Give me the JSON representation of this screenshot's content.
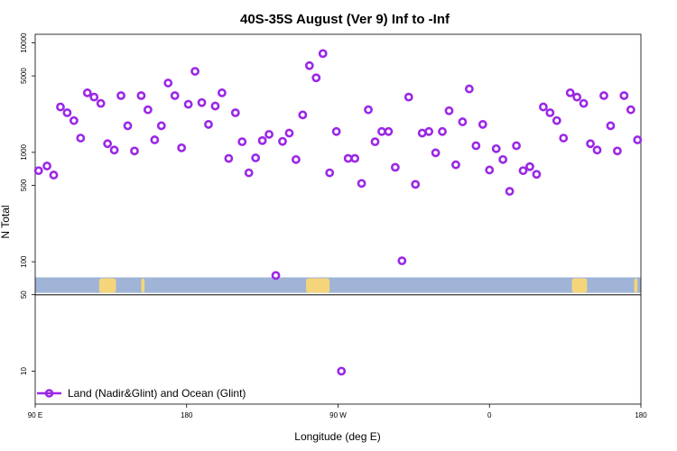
{
  "chart_data": {
    "type": "scatter",
    "title": "40S-35S August (Ver 9)   Inf to -Inf",
    "xlabel": "Longitude (deg E)",
    "ylabel": "N Total",
    "y_scale": "log",
    "xlim": [
      90,
      450
    ],
    "ylim": [
      5,
      12000
    ],
    "x_ticks": [
      {
        "value": 90,
        "label": "90 E"
      },
      {
        "value": 180,
        "label": "180"
      },
      {
        "value": 270,
        "label": "90 W"
      },
      {
        "value": 360,
        "label": "0"
      },
      {
        "value": 450,
        "label": "180"
      }
    ],
    "y_ticks": [
      {
        "value": 10,
        "label": "10"
      },
      {
        "value": 50,
        "label": "50"
      },
      {
        "value": 100,
        "label": "100"
      },
      {
        "value": 500,
        "label": "500"
      },
      {
        "value": 1000,
        "label": "1000"
      },
      {
        "value": 5000,
        "label": "5000"
      },
      {
        "value": 10000,
        "label": "10000"
      }
    ],
    "legend_position": "bottom-left",
    "series": [
      {
        "name": "Land (Nadir&Glint) and Ocean (Glint)",
        "color": "#9b27e6",
        "points": [
          {
            "x": 92,
            "y": 680
          },
          {
            "x": 97,
            "y": 750
          },
          {
            "x": 101,
            "y": 620
          },
          {
            "x": 105,
            "y": 2600
          },
          {
            "x": 109,
            "y": 2300
          },
          {
            "x": 113,
            "y": 1950
          },
          {
            "x": 117,
            "y": 1350
          },
          {
            "x": 121,
            "y": 3500
          },
          {
            "x": 125,
            "y": 3200
          },
          {
            "x": 129,
            "y": 2800
          },
          {
            "x": 133,
            "y": 1200
          },
          {
            "x": 137,
            "y": 1050
          },
          {
            "x": 141,
            "y": 3300
          },
          {
            "x": 145,
            "y": 1750
          },
          {
            "x": 149,
            "y": 1030
          },
          {
            "x": 153,
            "y": 3300
          },
          {
            "x": 157,
            "y": 2450
          },
          {
            "x": 161,
            "y": 1300
          },
          {
            "x": 165,
            "y": 1750
          },
          {
            "x": 169,
            "y": 4300
          },
          {
            "x": 173,
            "y": 3300
          },
          {
            "x": 177,
            "y": 1100
          },
          {
            "x": 181,
            "y": 2750
          },
          {
            "x": 185,
            "y": 5500
          },
          {
            "x": 189,
            "y": 2850
          },
          {
            "x": 193,
            "y": 1800
          },
          {
            "x": 197,
            "y": 2650
          },
          {
            "x": 201,
            "y": 3500
          },
          {
            "x": 205,
            "y": 880
          },
          {
            "x": 209,
            "y": 2300
          },
          {
            "x": 213,
            "y": 1250
          },
          {
            "x": 217,
            "y": 650
          },
          {
            "x": 221,
            "y": 890
          },
          {
            "x": 225,
            "y": 1280
          },
          {
            "x": 229,
            "y": 1460
          },
          {
            "x": 233,
            "y": 75
          },
          {
            "x": 237,
            "y": 1260
          },
          {
            "x": 241,
            "y": 1500
          },
          {
            "x": 245,
            "y": 860
          },
          {
            "x": 249,
            "y": 2200
          },
          {
            "x": 253,
            "y": 6200
          },
          {
            "x": 257,
            "y": 4800
          },
          {
            "x": 261,
            "y": 8000
          },
          {
            "x": 265,
            "y": 650
          },
          {
            "x": 269,
            "y": 1550
          },
          {
            "x": 272,
            "y": 10
          },
          {
            "x": 276,
            "y": 880
          },
          {
            "x": 280,
            "y": 880
          },
          {
            "x": 284,
            "y": 520
          },
          {
            "x": 288,
            "y": 2450
          },
          {
            "x": 292,
            "y": 1250
          },
          {
            "x": 296,
            "y": 1550
          },
          {
            "x": 300,
            "y": 1550
          },
          {
            "x": 304,
            "y": 730
          },
          {
            "x": 308,
            "y": 102
          },
          {
            "x": 312,
            "y": 3200
          },
          {
            "x": 316,
            "y": 510
          },
          {
            "x": 320,
            "y": 1500
          },
          {
            "x": 324,
            "y": 1550
          },
          {
            "x": 328,
            "y": 990
          },
          {
            "x": 332,
            "y": 1550
          },
          {
            "x": 336,
            "y": 2400
          },
          {
            "x": 340,
            "y": 770
          },
          {
            "x": 344,
            "y": 1900
          },
          {
            "x": 348,
            "y": 3800
          },
          {
            "x": 352,
            "y": 1150
          },
          {
            "x": 356,
            "y": 1800
          },
          {
            "x": 360,
            "y": 690
          },
          {
            "x": 364,
            "y": 1080
          },
          {
            "x": 368,
            "y": 860
          },
          {
            "x": 372,
            "y": 440
          },
          {
            "x": 376,
            "y": 1150
          },
          {
            "x": 380,
            "y": 680
          },
          {
            "x": 384,
            "y": 740
          },
          {
            "x": 388,
            "y": 630
          },
          {
            "x": 392,
            "y": 2600
          },
          {
            "x": 396,
            "y": 2300
          },
          {
            "x": 400,
            "y": 1950
          },
          {
            "x": 404,
            "y": 1350
          },
          {
            "x": 408,
            "y": 3500
          },
          {
            "x": 412,
            "y": 3200
          },
          {
            "x": 416,
            "y": 2800
          },
          {
            "x": 420,
            "y": 1200
          },
          {
            "x": 424,
            "y": 1050
          },
          {
            "x": 428,
            "y": 3300
          },
          {
            "x": 432,
            "y": 1750
          },
          {
            "x": 436,
            "y": 1030
          },
          {
            "x": 440,
            "y": 3300
          },
          {
            "x": 444,
            "y": 2450
          },
          {
            "x": 448,
            "y": 1300
          }
        ]
      }
    ],
    "map_strip": {
      "ocean_color": "#9fb4d6",
      "land_color": "#f5d57a",
      "land_spans": [
        [
          128,
          138
        ],
        [
          153,
          155
        ],
        [
          251,
          265
        ],
        [
          409,
          418
        ],
        [
          446,
          448
        ]
      ]
    }
  }
}
